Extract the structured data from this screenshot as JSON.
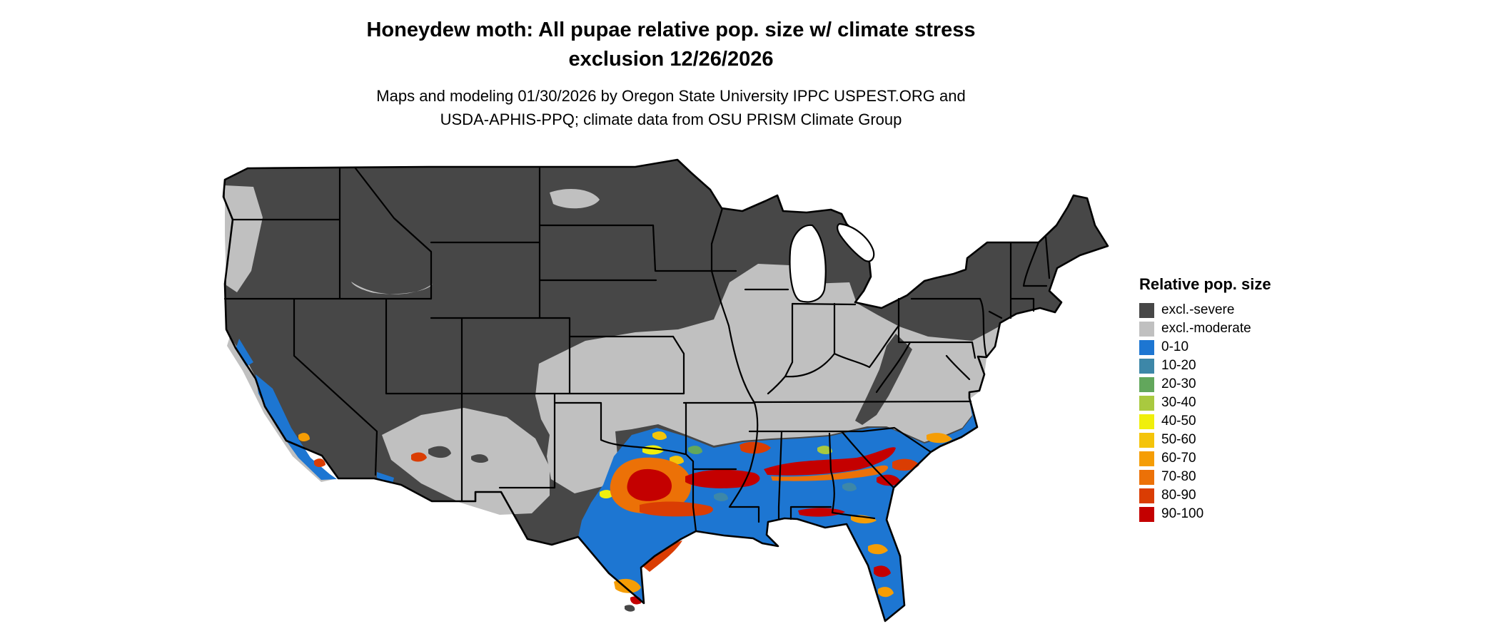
{
  "header": {
    "title_line1": "Honeydew moth: All pupae relative pop. size w/ climate stress",
    "title_line2": "exclusion 12/26/2026",
    "subtitle_line1": "Maps and modeling 01/30/2026 by Oregon State University IPPC USPEST.ORG and",
    "subtitle_line2": "USDA-APHIS-PPQ; climate data from OSU PRISM Climate Group"
  },
  "legend": {
    "title": "Relative pop. size",
    "entries": [
      {
        "label": "excl.-severe",
        "color": "#474747"
      },
      {
        "label": "excl.-moderate",
        "color": "#c0c0c0"
      },
      {
        "label": "0-10",
        "color": "#1d76d2"
      },
      {
        "label": "10-20",
        "color": "#3d87a8"
      },
      {
        "label": "20-30",
        "color": "#62a75c"
      },
      {
        "label": "30-40",
        "color": "#a9c93f"
      },
      {
        "label": "40-50",
        "color": "#f0ef0c"
      },
      {
        "label": "50-60",
        "color": "#f4c40a"
      },
      {
        "label": "60-70",
        "color": "#f59d05"
      },
      {
        "label": "70-80",
        "color": "#ec7107"
      },
      {
        "label": "80-90",
        "color": "#da3d03"
      },
      {
        "label": "90-100",
        "color": "#c40000"
      }
    ]
  },
  "map": {
    "palette": {
      "severe": "#474747",
      "moderate": "#c0c0c0",
      "b0_10": "#1d76d2",
      "b10_20": "#3d87a8",
      "b20_30": "#62a75c",
      "b30_40": "#a9c93f",
      "b40_50": "#f0ef0c",
      "b50_60": "#f4c40a",
      "b60_70": "#f59d05",
      "b70_80": "#ec7107",
      "b80_90": "#da3d03",
      "b90_100": "#c40000",
      "water": "#ffffff",
      "border": "#000000"
    }
  }
}
